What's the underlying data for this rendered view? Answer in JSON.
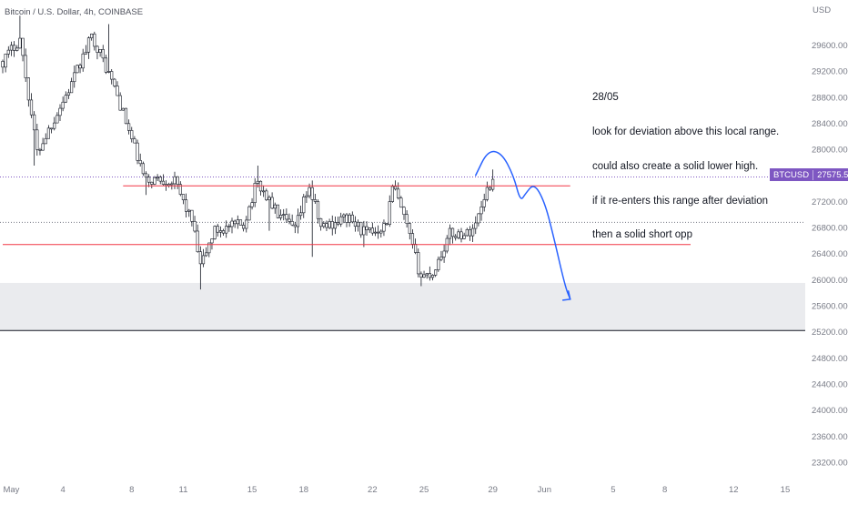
{
  "header": {
    "title": "Bitcoin / U.S. Dollar, 4h, COINBASE",
    "currency": "USD"
  },
  "annotation": {
    "lines": [
      "28/05",
      "look for deviation above this local range.",
      "could also create a solid lower high.",
      "if it re-enters this range after deviation",
      "then a solid short opp"
    ]
  },
  "last_price": {
    "symbol": "BTCUSD",
    "value": "27575.52"
  },
  "colors": {
    "candle_body": "#ffffff",
    "candle_edge": "#131722",
    "range_line": "#f23645",
    "projection": "#2962ff",
    "zone_fill": "#eaebee",
    "price_tag": "#7e57c2",
    "axis_text": "#787b86"
  },
  "chart_data": {
    "type": "candlestick",
    "title": "Bitcoin / U.S. Dollar, 4h, COINBASE",
    "y_unit": "USD",
    "ylim": [
      23000,
      30100
    ],
    "y_ticks": [
      23200,
      23600,
      24000,
      24400,
      24800,
      25200,
      25600,
      26000,
      26400,
      26800,
      27200,
      27600,
      28000,
      28400,
      28800,
      29200,
      29600
    ],
    "x_ticks": [
      {
        "label": "May",
        "t": 0.5
      },
      {
        "label": "4",
        "t": 3.5
      },
      {
        "label": "8",
        "t": 7.5
      },
      {
        "label": "11",
        "t": 10.5
      },
      {
        "label": "15",
        "t": 14.5
      },
      {
        "label": "18",
        "t": 17.5
      },
      {
        "label": "22",
        "t": 21.5
      },
      {
        "label": "25",
        "t": 24.5
      },
      {
        "label": "29",
        "t": 28.5
      },
      {
        "label": "Jun",
        "t": 31.5
      },
      {
        "label": "5",
        "t": 35.5
      },
      {
        "label": "8",
        "t": 38.5
      },
      {
        "label": "12",
        "t": 42.5
      },
      {
        "label": "15",
        "t": 45.5
      }
    ],
    "key_anchors": [
      {
        "t": 0.0,
        "close": 29350
      },
      {
        "t": 1.0,
        "close": 29700
      },
      {
        "t": 2.0,
        "close": 27950
      },
      {
        "t": 4.0,
        "close": 29000
      },
      {
        "t": 5.2,
        "close": 29750
      },
      {
        "t": 6.5,
        "close": 28950
      },
      {
        "t": 8.3,
        "close": 27500
      },
      {
        "t": 9.0,
        "close": 27550
      },
      {
        "t": 10.0,
        "close": 27500
      },
      {
        "t": 11.0,
        "close": 26900
      },
      {
        "t": 11.5,
        "close": 26200
      },
      {
        "t": 12.3,
        "close": 26750
      },
      {
        "t": 14.0,
        "close": 26850
      },
      {
        "t": 14.8,
        "close": 27500
      },
      {
        "t": 16.0,
        "close": 27000
      },
      {
        "t": 17.0,
        "close": 26750
      },
      {
        "t": 17.8,
        "close": 27450
      },
      {
        "t": 18.5,
        "close": 26800
      },
      {
        "t": 20.0,
        "close": 26950
      },
      {
        "t": 21.2,
        "close": 26700
      },
      {
        "t": 22.3,
        "close": 26850
      },
      {
        "t": 22.7,
        "close": 27450
      },
      {
        "t": 23.5,
        "close": 26800
      },
      {
        "t": 24.3,
        "close": 26050
      },
      {
        "t": 25.0,
        "close": 26100
      },
      {
        "t": 26.0,
        "close": 26700
      },
      {
        "t": 27.0,
        "close": 26700
      },
      {
        "t": 27.5,
        "close": 26850
      },
      {
        "t": 28.0,
        "close": 27300
      },
      {
        "t": 28.6,
        "close": 27575
      }
    ],
    "key_lows": [
      {
        "t": 1.8,
        "low": 27750
      },
      {
        "t": 8.3,
        "low": 27300
      },
      {
        "t": 11.5,
        "low": 25850
      },
      {
        "t": 15.5,
        "low": 26750
      },
      {
        "t": 18.0,
        "low": 26350
      },
      {
        "t": 21.0,
        "low": 26500
      },
      {
        "t": 24.3,
        "low": 25900
      }
    ],
    "key_highs": [
      {
        "t": 1.0,
        "high": 30050
      },
      {
        "t": 6.2,
        "high": 29920
      },
      {
        "t": 14.8,
        "high": 27750
      },
      {
        "t": 28.5,
        "high": 27690
      }
    ],
    "horizontal_lines": [
      {
        "name": "range-high",
        "price": 27440,
        "t_start": 7.0,
        "t_end": 33.0
      },
      {
        "name": "range-low",
        "price": 26540,
        "t_start": 0.0,
        "t_end": 40.0
      }
    ],
    "reference_lines": [
      {
        "name": "last-price-line",
        "price": 27575.52
      },
      {
        "name": "mid-line",
        "price": 26880
      }
    ],
    "zone": {
      "price_top": 25950,
      "price_bottom": 25220
    },
    "projection_path": [
      {
        "t": 27.5,
        "price": 27600
      },
      {
        "t": 28.2,
        "price": 27980
      },
      {
        "t": 29.0,
        "price": 27950
      },
      {
        "t": 29.7,
        "price": 27600
      },
      {
        "t": 30.1,
        "price": 27200
      },
      {
        "t": 30.4,
        "price": 27320
      },
      {
        "t": 30.9,
        "price": 27480
      },
      {
        "t": 31.5,
        "price": 27200
      },
      {
        "t": 32.0,
        "price": 26700
      },
      {
        "t": 32.7,
        "price": 25900
      },
      {
        "t": 33.0,
        "price": 25700
      }
    ],
    "last_price": 27575.52
  }
}
